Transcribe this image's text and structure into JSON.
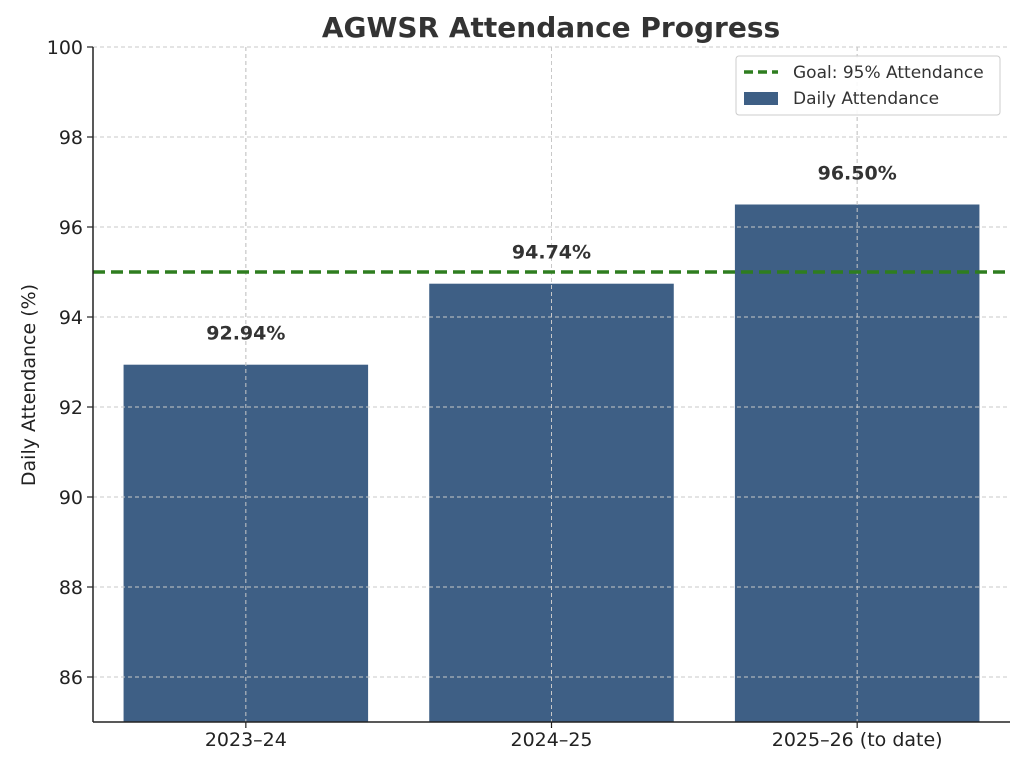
{
  "chart_data": {
    "type": "bar",
    "title": "AGWSR Attendance Progress",
    "xlabel": "",
    "ylabel": "Daily Attendance (%)",
    "categories": [
      "2023–24",
      "2024–25",
      "2025–26 (to date)"
    ],
    "series": [
      {
        "name": "Daily Attendance",
        "values": [
          92.94,
          94.74,
          96.5
        ],
        "color": "#3e5f85"
      }
    ],
    "data_labels": [
      "92.94%",
      "94.74%",
      "96.50%"
    ],
    "reference_line": {
      "name": "Goal: 95% Attendance",
      "value": 95,
      "color": "#2e7d1f",
      "style": "dashed"
    },
    "ylim": [
      85,
      100
    ],
    "yticks": [
      86,
      88,
      90,
      92,
      94,
      96,
      98,
      100
    ],
    "grid": true,
    "legend_position": "top-right"
  }
}
